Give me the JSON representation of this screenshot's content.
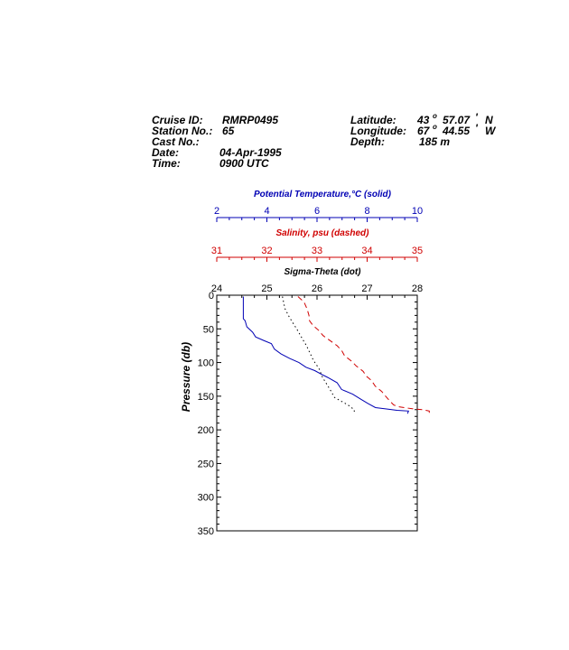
{
  "header": {
    "cruise_label": "Cruise ID:",
    "cruise_value": "RMRP0495",
    "station_label": "Station No.:",
    "station_value": "65",
    "cast_label": "Cast No.:",
    "cast_value": "",
    "date_label": "Date:",
    "date_value": "04-Apr-1995",
    "time_label": "Time:",
    "time_value": "0900 UTC",
    "lat_label": "Latitude:",
    "lat_deg": "43",
    "lat_min": "57.07",
    "lat_hem": "N",
    "lon_label": "Longitude:",
    "lon_deg": "67",
    "lon_min": "44.55",
    "lon_hem": "W",
    "depth_label": "Depth:",
    "depth_value": "185 m"
  },
  "chart_data": {
    "type": "line",
    "y_axis": {
      "label": "Pressure (db)",
      "range": [
        0,
        350
      ],
      "inverted": true,
      "ticks": [
        0,
        50,
        100,
        150,
        200,
        250,
        300,
        350
      ]
    },
    "x_axes": [
      {
        "id": "temp",
        "label": "Potential Temperature,°C (solid)",
        "range": [
          2,
          10
        ],
        "ticks": [
          2,
          4,
          6,
          8,
          10
        ],
        "color": "#0000b4"
      },
      {
        "id": "sal",
        "label": "Salinity, psu  (dashed)",
        "range": [
          31,
          35
        ],
        "ticks": [
          31,
          32,
          33,
          34,
          35
        ],
        "color": "#d00000"
      },
      {
        "id": "sig",
        "label": "Sigma-Theta (dot)",
        "range": [
          24,
          28
        ],
        "ticks": [
          24,
          25,
          26,
          27,
          28
        ],
        "color": "#000000"
      }
    ],
    "series": [
      {
        "axis": "temp",
        "style": "solid",
        "color": "#0000b4",
        "points": [
          [
            3.06,
            2
          ],
          [
            3.06,
            35
          ],
          [
            3.13,
            38
          ],
          [
            3.2,
            47
          ],
          [
            3.43,
            55
          ],
          [
            3.55,
            62
          ],
          [
            3.86,
            67
          ],
          [
            4.18,
            72
          ],
          [
            4.3,
            80
          ],
          [
            4.56,
            87
          ],
          [
            4.91,
            94
          ],
          [
            5.28,
            100
          ],
          [
            5.56,
            107
          ],
          [
            5.91,
            112
          ],
          [
            6.15,
            117
          ],
          [
            6.42,
            122
          ],
          [
            6.8,
            130
          ],
          [
            6.98,
            140
          ],
          [
            7.42,
            147
          ],
          [
            7.77,
            155
          ],
          [
            8.04,
            161
          ],
          [
            8.33,
            167
          ],
          [
            8.77,
            169
          ],
          [
            9.19,
            171
          ],
          [
            9.65,
            172
          ],
          [
            9.61,
            176
          ]
        ]
      },
      {
        "axis": "sal",
        "style": "dashed",
        "color": "#d00000",
        "points": [
          [
            32.62,
            2
          ],
          [
            32.74,
            10
          ],
          [
            32.8,
            20
          ],
          [
            32.84,
            30
          ],
          [
            32.85,
            38
          ],
          [
            32.92,
            45
          ],
          [
            33.03,
            52
          ],
          [
            33.12,
            60
          ],
          [
            33.27,
            68
          ],
          [
            33.4,
            75
          ],
          [
            33.49,
            82
          ],
          [
            33.55,
            90
          ],
          [
            33.69,
            98
          ],
          [
            33.78,
            105
          ],
          [
            33.92,
            113
          ],
          [
            33.98,
            120
          ],
          [
            34.09,
            127
          ],
          [
            34.16,
            135
          ],
          [
            34.29,
            143
          ],
          [
            34.37,
            150
          ],
          [
            34.45,
            157
          ],
          [
            34.53,
            163
          ],
          [
            34.65,
            166
          ],
          [
            34.93,
            169
          ],
          [
            35.1,
            170
          ],
          [
            35.24,
            172
          ],
          [
            35.24,
            175
          ]
        ]
      },
      {
        "axis": "sig",
        "style": "dotted",
        "color": "#000000",
        "points": [
          [
            25.31,
            2
          ],
          [
            25.36,
            20
          ],
          [
            25.45,
            33
          ],
          [
            25.61,
            52
          ],
          [
            25.71,
            65
          ],
          [
            25.79,
            75
          ],
          [
            25.93,
            97
          ],
          [
            26.04,
            109
          ],
          [
            26.11,
            122
          ],
          [
            26.26,
            140
          ],
          [
            26.35,
            152
          ],
          [
            26.62,
            163
          ],
          [
            26.74,
            170
          ],
          [
            26.75,
            177
          ]
        ]
      }
    ]
  }
}
